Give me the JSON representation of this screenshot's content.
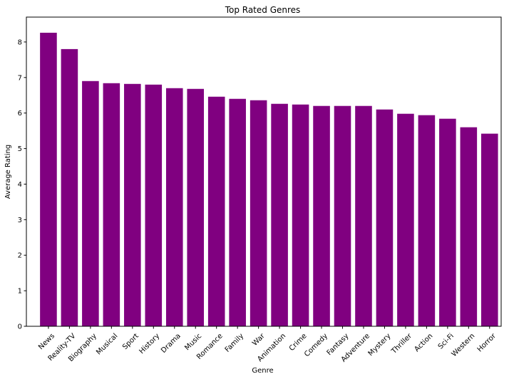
{
  "chart_data": {
    "type": "bar",
    "title": "Top Rated Genres",
    "xlabel": "Genre",
    "ylabel": "Average Rating",
    "ylim": [
      0,
      8.7
    ],
    "yticks": [
      0,
      1,
      2,
      3,
      4,
      5,
      6,
      7,
      8
    ],
    "grid": false,
    "bar_color": "#800080",
    "categories": [
      "News",
      "Reality-TV",
      "Biography",
      "Musical",
      "Sport",
      "History",
      "Drama",
      "Music",
      "Romance",
      "Family",
      "War",
      "Animation",
      "Crime",
      "Comedy",
      "Fantasy",
      "Adventure",
      "Mystery",
      "Thriller",
      "Action",
      "Sci-Fi",
      "Western",
      "Horror"
    ],
    "values": [
      8.26,
      7.8,
      6.9,
      6.84,
      6.82,
      6.8,
      6.7,
      6.68,
      6.46,
      6.4,
      6.36,
      6.26,
      6.24,
      6.2,
      6.2,
      6.2,
      6.1,
      5.98,
      5.94,
      5.84,
      5.6,
      5.42
    ]
  }
}
